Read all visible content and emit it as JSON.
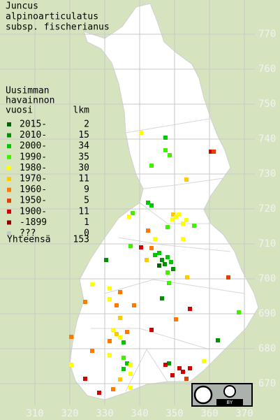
{
  "title": [
    "Juncus",
    "alpinoarticulatus",
    "subsp. fischerianus"
  ],
  "legend": {
    "header": [
      "Uusimman",
      "havainnon",
      "vuosi"
    ],
    "count_header": "lkm",
    "rows": [
      {
        "label": "2015-",
        "count": 2,
        "color": "#006400"
      },
      {
        "label": "2010-",
        "count": 15,
        "color": "#009000"
      },
      {
        "label": "2000-",
        "count": 34,
        "color": "#00c800"
      },
      {
        "label": "1990-",
        "count": 35,
        "color": "#40f000"
      },
      {
        "label": "1980-",
        "count": 30,
        "color": "#ffff00"
      },
      {
        "label": "1970-",
        "count": 11,
        "color": "#ffc800"
      },
      {
        "label": "1960-",
        "count": 9,
        "color": "#ff7800"
      },
      {
        "label": "1950-",
        "count": 5,
        "color": "#e04000"
      },
      {
        "label": "1900-",
        "count": 11,
        "color": "#d00000"
      },
      {
        "label": "-1899",
        "count": 1,
        "color": "#8c0000"
      },
      {
        "label": "???",
        "count": 0,
        "color": "#c8c8c8"
      }
    ],
    "total_label": "Yhteensä",
    "total": 153
  },
  "grid": {
    "xticks": [
      310,
      320,
      330,
      340,
      350,
      360,
      370
    ],
    "yticks": [
      670,
      680,
      690,
      700,
      710,
      720,
      730,
      740,
      750,
      760,
      770
    ]
  },
  "license_label": "BY"
}
